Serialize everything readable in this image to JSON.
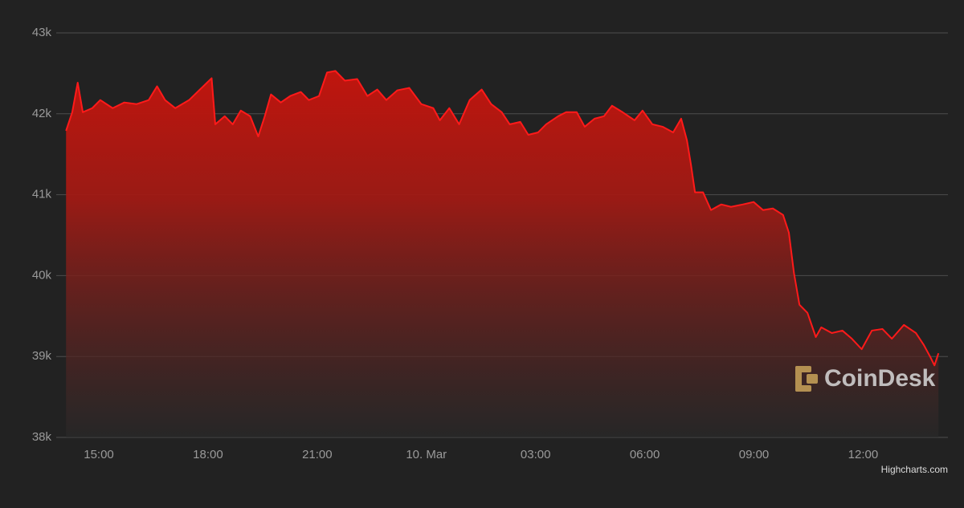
{
  "chart_data": {
    "type": "area",
    "x": [
      14.1,
      14.27,
      14.42,
      14.56,
      14.82,
      15.04,
      15.38,
      15.7,
      16.04,
      16.37,
      16.6,
      16.82,
      17.1,
      17.48,
      17.8,
      18.1,
      18.2,
      18.46,
      18.68,
      18.9,
      19.16,
      19.38,
      19.56,
      19.73,
      20.0,
      20.26,
      20.55,
      20.77,
      21.05,
      21.27,
      21.5,
      21.76,
      22.1,
      22.38,
      22.65,
      22.9,
      23.2,
      23.53,
      23.86,
      24.19,
      24.37,
      24.63,
      24.9,
      25.19,
      25.52,
      25.78,
      26.07,
      26.29,
      26.58,
      26.8,
      27.07,
      27.29,
      27.62,
      27.84,
      28.13,
      28.35,
      28.62,
      28.88,
      29.1,
      29.39,
      29.72,
      29.94,
      30.21,
      30.49,
      30.78,
      31.0,
      31.16,
      31.27,
      31.38,
      31.6,
      31.82,
      32.1,
      32.37,
      32.7,
      32.99,
      33.25,
      33.52,
      33.8,
      33.96,
      34.1,
      34.25,
      34.47,
      34.7,
      34.85,
      35.14,
      35.43,
      35.69,
      35.96,
      36.24,
      36.53,
      36.79,
      37.12,
      37.45,
      37.67,
      37.85,
      37.96,
      38.07
    ],
    "series": [
      {
        "color": "#ff1a1a",
        "values": [
          41790,
          42020,
          42385,
          42020,
          42070,
          42170,
          42070,
          42140,
          42120,
          42170,
          42340,
          42170,
          42070,
          42170,
          42310,
          42440,
          41870,
          41970,
          41870,
          42040,
          41970,
          41720,
          41970,
          42240,
          42140,
          42220,
          42270,
          42170,
          42220,
          42510,
          42530,
          42410,
          42430,
          42220,
          42300,
          42170,
          42290,
          42320,
          42120,
          42070,
          41920,
          42070,
          41870,
          42170,
          42300,
          42120,
          42020,
          41870,
          41900,
          41740,
          41770,
          41870,
          41970,
          42020,
          42020,
          41840,
          41940,
          41970,
          42100,
          42020,
          41920,
          42040,
          41870,
          41840,
          41770,
          41940,
          41670,
          41370,
          41030,
          41030,
          40810,
          40880,
          40850,
          40880,
          40910,
          40810,
          40830,
          40750,
          40530,
          40030,
          39640,
          39540,
          39240,
          39360,
          39290,
          39320,
          39220,
          39090,
          39320,
          39340,
          39220,
          39390,
          39290,
          39140,
          38990,
          38890,
          39040
        ]
      }
    ],
    "xlim": [
      13.83,
      38.33
    ],
    "xticks": [
      {
        "value": 15,
        "label": "15:00"
      },
      {
        "value": 18,
        "label": "18:00"
      },
      {
        "value": 21,
        "label": "21:00"
      },
      {
        "value": 24,
        "label": "10. Mar"
      },
      {
        "value": 27,
        "label": "03:00"
      },
      {
        "value": 30,
        "label": "06:00"
      },
      {
        "value": 33,
        "label": "09:00"
      },
      {
        "value": 36,
        "label": "12:00"
      }
    ],
    "ylim": [
      38000,
      43000
    ],
    "yticks": [
      {
        "value": 38000,
        "label": "38k"
      },
      {
        "value": 39000,
        "label": "39k"
      },
      {
        "value": 40000,
        "label": "40k"
      },
      {
        "value": 41000,
        "label": "41k"
      },
      {
        "value": 42000,
        "label": "42k"
      },
      {
        "value": 43000,
        "label": "43k"
      }
    ],
    "grid": true,
    "watermark": "CoinDesk",
    "credits": "Highcharts.com"
  }
}
